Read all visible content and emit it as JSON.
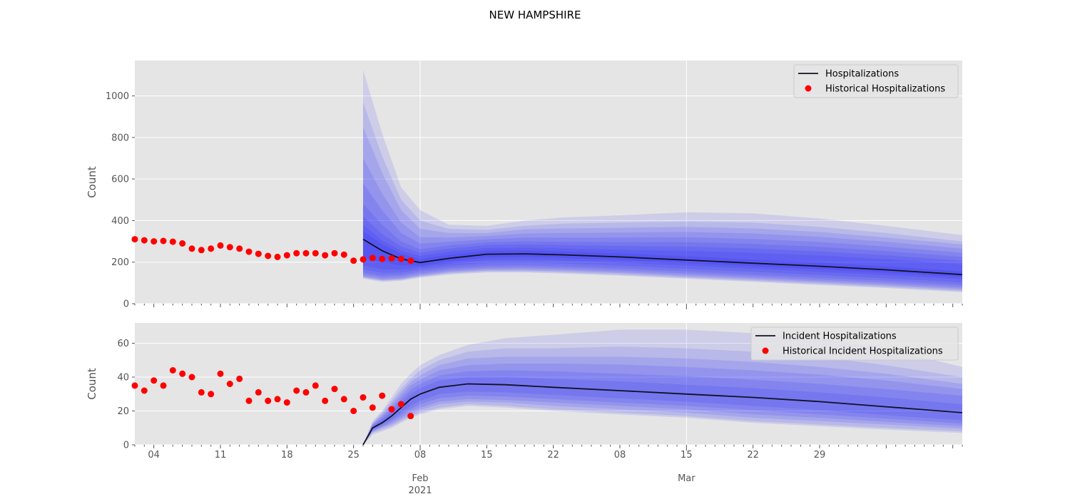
{
  "figure_title": "NEW HAMPSHIRE",
  "x_axis": {
    "day_ticks": [
      "04",
      "11",
      "18",
      "25",
      "08",
      "15",
      "22",
      "08",
      "15",
      "22",
      "29"
    ],
    "month_ticks": [
      {
        "date": "2021-02-01",
        "label": "Feb",
        "sublabel": "2021"
      },
      {
        "date": "2021-03-01",
        "label": "Mar",
        "sublabel": ""
      }
    ],
    "xlim": [
      "2021-01-02",
      "2021-03-30"
    ]
  },
  "colors": {
    "band": "#0000ff",
    "median": "#111122",
    "points": "#ff0000",
    "panel_bg": "#e5e5e5",
    "grid": "#ffffff"
  },
  "chart_data": [
    {
      "type": "line",
      "title": "",
      "xlabel": "",
      "ylabel": "Count",
      "ylim": [
        0,
        1170
      ],
      "yticks": [
        0,
        200,
        400,
        600,
        800,
        1000
      ],
      "grid": true,
      "legend": "top-right",
      "legend_entries": [
        "Hospitalizations",
        "Historical Hospitalizations"
      ],
      "historical": {
        "name": "Historical Hospitalizations",
        "dates": [
          "2021-01-02",
          "2021-01-03",
          "2021-01-04",
          "2021-01-05",
          "2021-01-06",
          "2021-01-07",
          "2021-01-08",
          "2021-01-09",
          "2021-01-10",
          "2021-01-11",
          "2021-01-12",
          "2021-01-13",
          "2021-01-14",
          "2021-01-15",
          "2021-01-16",
          "2021-01-17",
          "2021-01-18",
          "2021-01-19",
          "2021-01-20",
          "2021-01-21",
          "2021-01-22",
          "2021-01-23",
          "2021-01-24",
          "2021-01-25",
          "2021-01-26",
          "2021-01-27",
          "2021-01-28",
          "2021-01-29",
          "2021-01-30",
          "2021-01-31"
        ],
        "values": [
          310,
          305,
          300,
          302,
          298,
          290,
          265,
          258,
          265,
          280,
          272,
          265,
          250,
          240,
          230,
          225,
          233,
          243,
          243,
          243,
          233,
          243,
          236,
          207,
          213,
          220,
          215,
          218,
          215,
          207
        ]
      },
      "forecast": {
        "name": "Hospitalizations",
        "dates": [
          "2021-01-26",
          "2021-01-28",
          "2021-01-30",
          "2021-02-01",
          "2021-02-04",
          "2021-02-08",
          "2021-02-12",
          "2021-02-16",
          "2021-02-22",
          "2021-03-01",
          "2021-03-08",
          "2021-03-15",
          "2021-03-22",
          "2021-03-30"
        ],
        "median": [
          310,
          255,
          215,
          198,
          218,
          238,
          240,
          235,
          225,
          210,
          195,
          180,
          163,
          140
        ],
        "bands": [
          {
            "lower": [
              120,
              105,
              110,
              125,
              140,
              150,
              150,
              145,
              135,
              120,
              105,
              90,
              75,
              55
            ],
            "upper": [
              1125,
              820,
              560,
              450,
              380,
              375,
              400,
              415,
              425,
              440,
              435,
              410,
              375,
              330
            ]
          },
          {
            "lower": [
              125,
              110,
              115,
              130,
              145,
              155,
              155,
              150,
              140,
              125,
              110,
              95,
              80,
              60
            ],
            "upper": [
              970,
              710,
              500,
              400,
              360,
              355,
              375,
              385,
              390,
              395,
              390,
              370,
              340,
              300
            ]
          },
          {
            "lower": [
              128,
              113,
              118,
              133,
              150,
              160,
              160,
              156,
              146,
              130,
              116,
              101,
              86,
              66
            ],
            "upper": [
              850,
              630,
              450,
              360,
              340,
              340,
              358,
              362,
              365,
              370,
              362,
              345,
              318,
              285
            ]
          },
          {
            "lower": [
              132,
              117,
              122,
              138,
              155,
              165,
              166,
              162,
              152,
              137,
              122,
              107,
              92,
              72
            ],
            "upper": [
              700,
              530,
              390,
              320,
              318,
              325,
              338,
              340,
              342,
              345,
              338,
              322,
              298,
              265
            ]
          },
          {
            "lower": [
              140,
              125,
              130,
              145,
              162,
              172,
              174,
              170,
              160,
              145,
              130,
              115,
              100,
              80
            ],
            "upper": [
              580,
              450,
              340,
              290,
              298,
              310,
              318,
              318,
              318,
              320,
              312,
              297,
              275,
              245
            ]
          },
          {
            "lower": [
              150,
              135,
              140,
              155,
              170,
              182,
              184,
              180,
              170,
              155,
              140,
              125,
              110,
              90
            ],
            "upper": [
              480,
              380,
              300,
              262,
              280,
              295,
              300,
              298,
              296,
              296,
              288,
              273,
              253,
              225
            ]
          },
          {
            "lower": [
              165,
              148,
              150,
              165,
              180,
              195,
              197,
              193,
              183,
              168,
              153,
              138,
              122,
              102
            ],
            "upper": [
              420,
              335,
              275,
              245,
              265,
              282,
              285,
              282,
              278,
              275,
              266,
              252,
              233,
              207
            ]
          },
          {
            "lower": [
              185,
              165,
              165,
              175,
              192,
              210,
              212,
              208,
              198,
              183,
              168,
              153,
              137,
              117
            ],
            "upper": [
              380,
              305,
              255,
              230,
              250,
              268,
              270,
              266,
              260,
              255,
              245,
              232,
              214,
              190
            ]
          },
          {
            "lower": [
              220,
              200,
              185,
              182,
              202,
              222,
              225,
              220,
              210,
              195,
              180,
              165,
              149,
              128
            ],
            "upper": [
              350,
              285,
              240,
              215,
              235,
              255,
              257,
              252,
              242,
              228,
              212,
              197,
              180,
              155
            ]
          }
        ]
      }
    },
    {
      "type": "line",
      "title": "",
      "xlabel": "",
      "ylabel": "Count",
      "ylim": [
        0,
        72
      ],
      "yticks": [
        0,
        20,
        40,
        60
      ],
      "grid": true,
      "legend": "top-right",
      "legend_entries": [
        "Incident Hospitalizations",
        "Historical Incident Hospitalizations"
      ],
      "historical": {
        "name": "Historical Incident Hospitalizations",
        "dates": [
          "2021-01-02",
          "2021-01-03",
          "2021-01-04",
          "2021-01-05",
          "2021-01-06",
          "2021-01-07",
          "2021-01-08",
          "2021-01-09",
          "2021-01-10",
          "2021-01-11",
          "2021-01-12",
          "2021-01-13",
          "2021-01-14",
          "2021-01-15",
          "2021-01-16",
          "2021-01-17",
          "2021-01-18",
          "2021-01-19",
          "2021-01-20",
          "2021-01-21",
          "2021-01-22",
          "2021-01-23",
          "2021-01-24",
          "2021-01-25",
          "2021-01-26",
          "2021-01-27",
          "2021-01-28",
          "2021-01-29",
          "2021-01-30",
          "2021-01-31"
        ],
        "values": [
          35,
          32,
          38,
          35,
          44,
          42,
          40,
          31,
          30,
          42,
          36,
          39,
          26,
          31,
          26,
          27,
          25,
          32,
          31,
          35,
          26,
          33,
          27,
          20,
          28,
          22,
          29,
          21,
          24,
          17
        ]
      },
      "forecast": {
        "name": "Incident Hospitalizations",
        "dates": [
          "2021-01-26",
          "2021-01-27",
          "2021-01-28",
          "2021-01-29",
          "2021-01-30",
          "2021-01-31",
          "2021-02-01",
          "2021-02-03",
          "2021-02-06",
          "2021-02-10",
          "2021-02-15",
          "2021-02-22",
          "2021-03-01",
          "2021-03-08",
          "2021-03-15",
          "2021-03-22",
          "2021-03-30"
        ],
        "median": [
          0,
          10,
          13,
          17,
          22,
          27,
          30,
          34,
          36,
          35.5,
          34,
          32,
          30,
          28,
          25.5,
          22.5,
          19
        ],
        "bands": [
          {
            "lower": [
              0,
              6,
              8,
              10,
              13,
              16,
              18,
              21,
              23,
              22,
              20,
              18,
              16,
              13,
              11,
              9,
              7
            ],
            "upper": [
              0,
              14,
              20,
              28,
              36,
              42,
              47,
              53,
              59,
              63,
              65,
              68,
              68,
              66,
              63,
              57,
              46
            ]
          },
          {
            "lower": [
              0,
              7,
              9,
              11,
              14,
              17,
              19,
              22,
              24,
              23,
              21,
              19,
              17,
              14,
              12,
              10,
              8
            ],
            "upper": [
              0,
              13,
              19,
              26,
              33,
              39,
              44,
              50,
              55,
              57,
              57,
              58,
              57,
              55,
              52,
              47,
              40
            ]
          },
          {
            "lower": [
              0,
              7.5,
              10,
              12,
              15,
              18,
              20.5,
              24,
              25.5,
              25,
              23,
              21,
              19,
              16,
              14,
              12,
              9.5
            ],
            "upper": [
              0,
              12.5,
              18,
              24.5,
              31,
              37,
              41,
              47,
              51,
              52,
              52,
              52,
              51,
              49,
              46,
              42,
              36
            ]
          },
          {
            "lower": [
              0,
              8,
              10.5,
              13,
              16,
              19.5,
              22,
              25.5,
              27,
              26.5,
              25,
              23,
              21,
              18,
              16,
              13.5,
              11
            ],
            "upper": [
              0,
              12,
              17,
              23,
              29,
              35,
              38.5,
              44,
              47,
              48,
              48,
              47.5,
              46,
              44,
              41.5,
              38,
              33
            ]
          },
          {
            "lower": [
              0,
              8.5,
              11,
              14,
              17.5,
              21,
              24,
              27.5,
              29,
              28.5,
              27,
              25,
              23,
              20.5,
              18,
              15.5,
              12.5
            ],
            "upper": [
              0,
              11.5,
              16,
              21.5,
              27,
              32.5,
              36,
              41,
              43.5,
              44,
              43.5,
              42,
              40.5,
              38.5,
              36,
              33,
              29
            ]
          },
          {
            "lower": [
              0,
              9,
              12,
              15,
              19,
              23,
              26,
              30,
              31.5,
              31,
              29.5,
              27.5,
              25.5,
              23,
              20.5,
              17.5,
              14.5
            ],
            "upper": [
              0,
              11,
              15,
              19.5,
              25,
              30,
              33.5,
              38,
              40,
              40,
              39,
              37.5,
              35.5,
              33.5,
              31,
              28,
              24
            ]
          }
        ]
      }
    }
  ]
}
